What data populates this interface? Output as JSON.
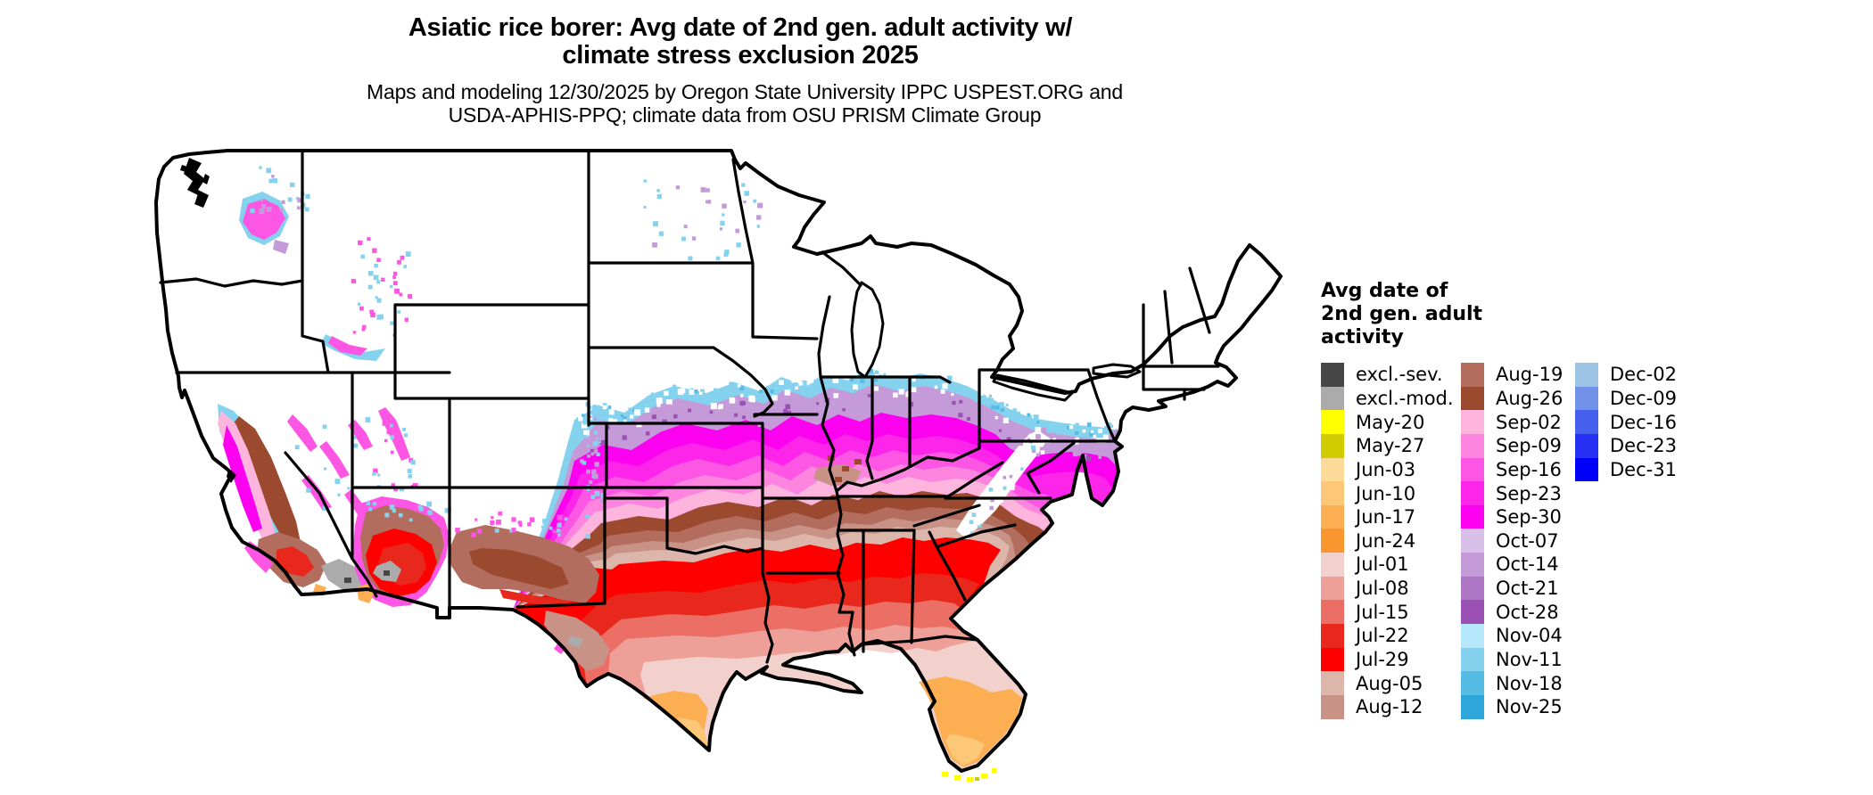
{
  "title": {
    "line1": "Asiatic rice borer: Avg date of 2nd gen. adult activity w/",
    "line2": "climate stress exclusion 2025"
  },
  "subtitle": {
    "line1": "Maps and modeling 12/30/2025 by Oregon State University IPPC USPEST.ORG and",
    "line2": "USDA-APHIS-PPQ; climate data from OSU PRISM Climate Group"
  },
  "legend": {
    "title_lines": [
      "Avg date of",
      "2nd gen. adult",
      "activity"
    ],
    "columns": [
      [
        {
          "label": "excl.-sev.",
          "color": "#474747"
        },
        {
          "label": "excl.-mod.",
          "color": "#ababab"
        },
        {
          "label": "May-20",
          "color": "#ffff00"
        },
        {
          "label": "May-27",
          "color": "#d1cc00"
        },
        {
          "label": "Jun-03",
          "color": "#fcdb99"
        },
        {
          "label": "Jun-10",
          "color": "#fcc878"
        },
        {
          "label": "Jun-17",
          "color": "#fcae53"
        },
        {
          "label": "Jun-24",
          "color": "#f9962e"
        },
        {
          "label": "Jul-01",
          "color": "#f2d1cc"
        },
        {
          "label": "Jul-08",
          "color": "#ee9f98"
        },
        {
          "label": "Jul-15",
          "color": "#ec6f65"
        },
        {
          "label": "Jul-22",
          "color": "#e8271d"
        },
        {
          "label": "Jul-29",
          "color": "#fe0000"
        },
        {
          "label": "Aug-05",
          "color": "#ddb6ab"
        },
        {
          "label": "Aug-12",
          "color": "#c89287"
        }
      ],
      [
        {
          "label": "Aug-19",
          "color": "#b26d5e"
        },
        {
          "label": "Aug-26",
          "color": "#9c4a2f"
        },
        {
          "label": "Sep-02",
          "color": "#fdb5dd"
        },
        {
          "label": "Sep-09",
          "color": "#fd85e0"
        },
        {
          "label": "Sep-16",
          "color": "#fd55e4"
        },
        {
          "label": "Sep-23",
          "color": "#fd25e9"
        },
        {
          "label": "Sep-30",
          "color": "#fc00f0"
        },
        {
          "label": "Oct-07",
          "color": "#d8c0e8"
        },
        {
          "label": "Oct-14",
          "color": "#c49bd8"
        },
        {
          "label": "Oct-21",
          "color": "#ad77c6"
        },
        {
          "label": "Oct-28",
          "color": "#9b50b4"
        },
        {
          "label": "Nov-04",
          "color": "#b6e8fb"
        },
        {
          "label": "Nov-11",
          "color": "#85d2ef"
        },
        {
          "label": "Nov-18",
          "color": "#55bce4"
        },
        {
          "label": "Nov-25",
          "color": "#2ea6d9"
        }
      ],
      [
        {
          "label": "Dec-02",
          "color": "#9cc3e3"
        },
        {
          "label": "Dec-09",
          "color": "#7192e8"
        },
        {
          "label": "Dec-16",
          "color": "#4660ee"
        },
        {
          "label": "Dec-23",
          "color": "#2530f4"
        },
        {
          "label": "Dec-31",
          "color": "#0000fa"
        }
      ]
    ]
  }
}
